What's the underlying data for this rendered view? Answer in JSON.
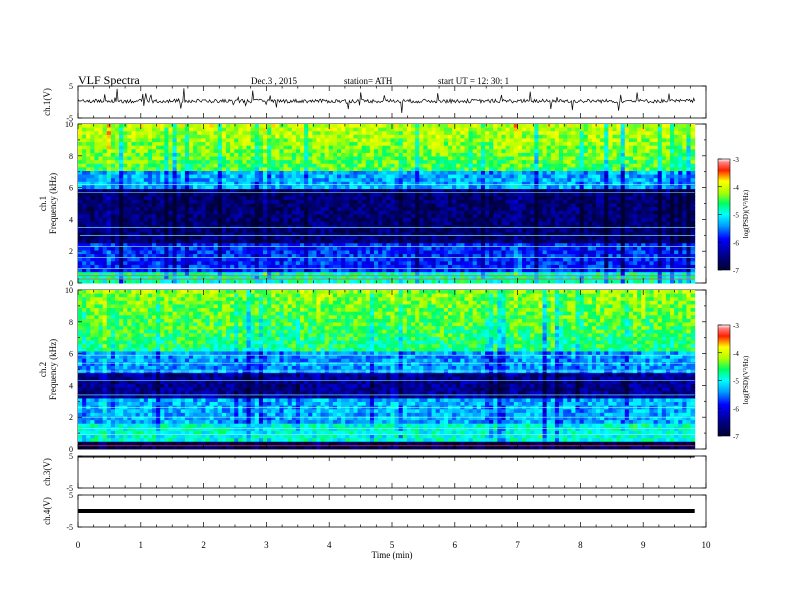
{
  "header": {
    "title": "VLF  Spectra",
    "date": "Dec.3  , 2015",
    "station": "station= ATH",
    "start": "start  UT  =    12: 30: 1"
  },
  "chart_data": [
    {
      "type": "line",
      "panel": "ch1-waveform",
      "ylabel": "ch.1(V)",
      "ylim": [
        -5,
        5
      ],
      "yticks": [
        "5",
        "-5"
      ],
      "baseline": 0.3,
      "color": "#000000"
    },
    {
      "type": "heatmap",
      "panel": "ch1-spectrogram",
      "ylabel": "ch.1\nFrequency  (kHz)",
      "ylim": [
        0,
        10
      ],
      "yticks": [
        "0",
        "2",
        "4",
        "6",
        "8",
        "10"
      ],
      "colorbar": {
        "label": "log(PSD)(V²/Hz)",
        "ticks": [
          "-3",
          "-4",
          "-5",
          "-6",
          "-7"
        ],
        "range": [
          -7,
          -3
        ]
      }
    },
    {
      "type": "heatmap",
      "panel": "ch2-spectrogram",
      "ylabel": "ch.2\nFrequency  (kHz)",
      "ylim": [
        0,
        10
      ],
      "yticks": [
        "0",
        "2",
        "4",
        "6",
        "8",
        "10"
      ],
      "colorbar": {
        "label": "log(PSD)(V²/Hz)",
        "ticks": [
          "-3",
          "-4",
          "-5",
          "-6",
          "-7"
        ],
        "range": [
          -7,
          -3
        ]
      }
    },
    {
      "type": "line",
      "panel": "ch3-waveform",
      "ylabel": "ch.3(V)",
      "ylim": [
        -5,
        5
      ],
      "yticks": [
        "5",
        "-5"
      ],
      "baseline": 5.0
    },
    {
      "type": "line",
      "panel": "ch4-waveform",
      "ylabel": "ch.4(V)",
      "ylim": [
        -5,
        5
      ],
      "yticks": [
        "5",
        "-5"
      ],
      "baseline": 0.0
    }
  ],
  "xaxis": {
    "label": "Time  (min)",
    "xlim": [
      0,
      10
    ],
    "ticks": [
      "0",
      "1",
      "2",
      "3",
      "4",
      "5",
      "6",
      "7",
      "8",
      "9",
      "10"
    ],
    "data_end": 9.82
  }
}
